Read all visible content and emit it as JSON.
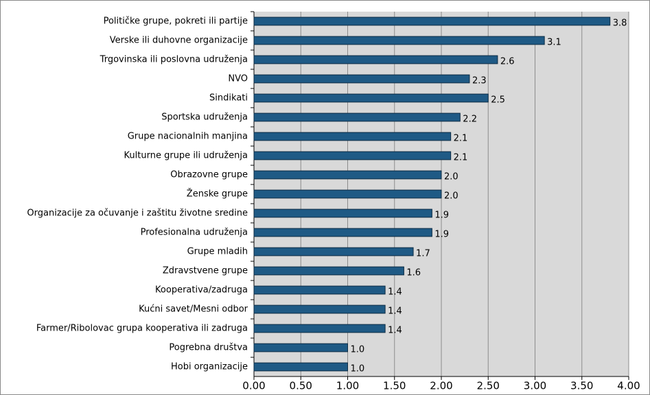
{
  "chart_data": {
    "type": "hbar",
    "categories": [
      "Političke grupe, pokreti ili partije",
      "Verske ili duhovne organizacije",
      "Trgovinska ili poslovna udruženja",
      "NVO",
      "Sindikati",
      "Sportska udruženja",
      "Grupe nacionalnih manjina",
      "Kulturne grupe ili udruženja",
      "Obrazovne grupe",
      "Ženske grupe",
      "Organizacije za očuvanje i zaštitu životne sredine",
      "Profesionalna udruženja",
      "Grupe mladih",
      "Zdravstvene grupe",
      "Kooperativa/zadruga",
      "Kućni savet/Mesni odbor",
      "Farmer/Ribolovac grupa kooperativa ili zadruga",
      "Pogrebna društva",
      "Hobi organizacije"
    ],
    "values": [
      3.8,
      3.1,
      2.6,
      2.3,
      2.5,
      2.2,
      2.1,
      2.1,
      2.0,
      2.0,
      1.9,
      1.9,
      1.7,
      1.6,
      1.4,
      1.4,
      1.4,
      1.0,
      1.0
    ],
    "value_labels": [
      "3.8",
      "3.1",
      "2.6",
      "2.3",
      "2.5",
      "2.2",
      "2.1",
      "2.1",
      "2.0",
      "2.0",
      "1.9",
      "1.9",
      "1.7",
      "1.6",
      "1.4",
      "1.4",
      "1.4",
      "1.0",
      "1.0"
    ],
    "color": "#1f5a85",
    "xlim": [
      0,
      4
    ],
    "xticks": [
      {
        "value": 0,
        "label": "0.00"
      },
      {
        "value": 0.5,
        "label": "0.50"
      },
      {
        "value": 1,
        "label": "1.00"
      },
      {
        "value": 1.5,
        "label": "1.50"
      },
      {
        "value": 2,
        "label": "2.00"
      },
      {
        "value": 2.5,
        "label": "2.50"
      },
      {
        "value": 3,
        "label": "3.00"
      },
      {
        "value": 3.5,
        "label": "3.50"
      },
      {
        "value": 4,
        "label": "4.00"
      }
    ],
    "grid": true
  }
}
